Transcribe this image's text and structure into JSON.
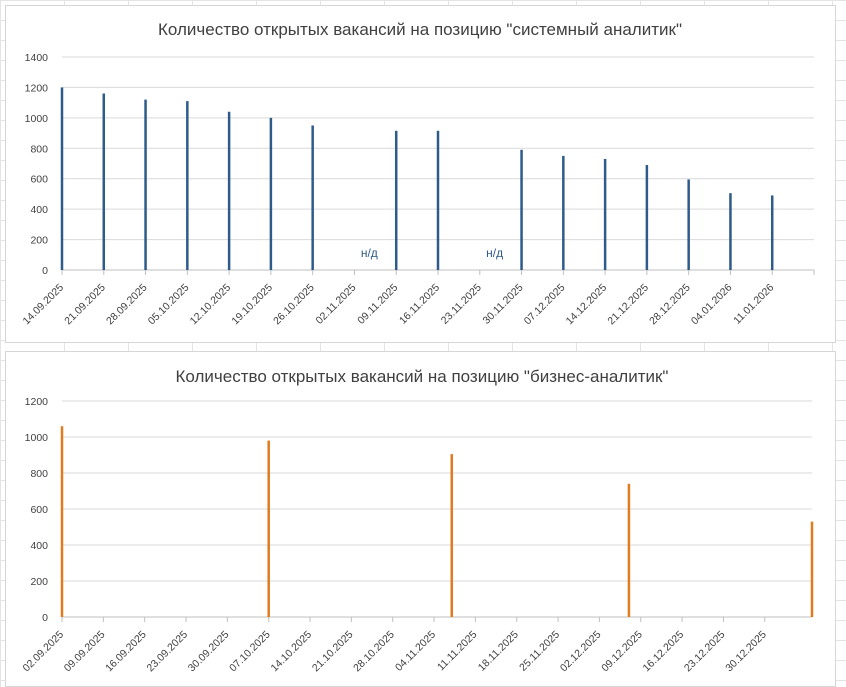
{
  "chart_data": [
    {
      "type": "bar",
      "title": "Количество открытых вакансий на позицию \"системный аналитик\"",
      "xlabel": "",
      "ylabel": "",
      "ylim": [
        0,
        1400
      ],
      "yticks": [
        0,
        200,
        400,
        600,
        800,
        1000,
        1200,
        1400
      ],
      "grid": true,
      "color": "#2f5b8a",
      "categories": [
        "14.09.2025",
        "21.09.2025",
        "28.09.2025",
        "05.10.2025",
        "12.10.2025",
        "19.10.2025",
        "26.10.2025",
        "02.11.2025",
        "09.11.2025",
        "16.11.2025",
        "23.11.2025",
        "30.11.2025",
        "07.12.2025",
        "14.12.2025",
        "21.12.2025",
        "28.12.2025",
        "04.01.2026",
        "11.01.2026"
      ],
      "values": [
        1200,
        1160,
        1120,
        1110,
        1040,
        1000,
        950,
        null,
        915,
        915,
        null,
        790,
        750,
        730,
        690,
        595,
        505,
        490
      ],
      "annotations": [
        {
          "category": "02.11.2025",
          "text": "н/д"
        },
        {
          "category": "23.11.2025",
          "text": "н/д"
        }
      ]
    },
    {
      "type": "bar",
      "title": "Количество открытых вакансий на позицию \"бизнес-аналитик\"",
      "xlabel": "",
      "ylabel": "",
      "ylim": [
        0,
        1200
      ],
      "yticks": [
        0,
        200,
        400,
        600,
        800,
        1000,
        1200
      ],
      "grid": true,
      "color": "#e07b1e",
      "tick_labels": [
        "02.09.2025",
        "09.09.2025",
        "16.09.2025",
        "23.09.2025",
        "30.09.2025",
        "07.10.2025",
        "14.10.2025",
        "21.10.2025",
        "28.10.2025",
        "04.11.2025",
        "11.11.2025",
        "18.11.2025",
        "25.11.2025",
        "02.12.2025",
        "09.12.2025",
        "16.12.2025",
        "23.12.2025",
        "30.12.2025"
      ],
      "points": [
        {
          "x": "02.09.2025",
          "y": 1060
        },
        {
          "x": "07.10.2025",
          "y": 980
        },
        {
          "x": "07.11.2025",
          "y": 905
        },
        {
          "x": "07.12.2025",
          "y": 740
        },
        {
          "x": "07.01.2026",
          "y": 530
        }
      ]
    }
  ]
}
